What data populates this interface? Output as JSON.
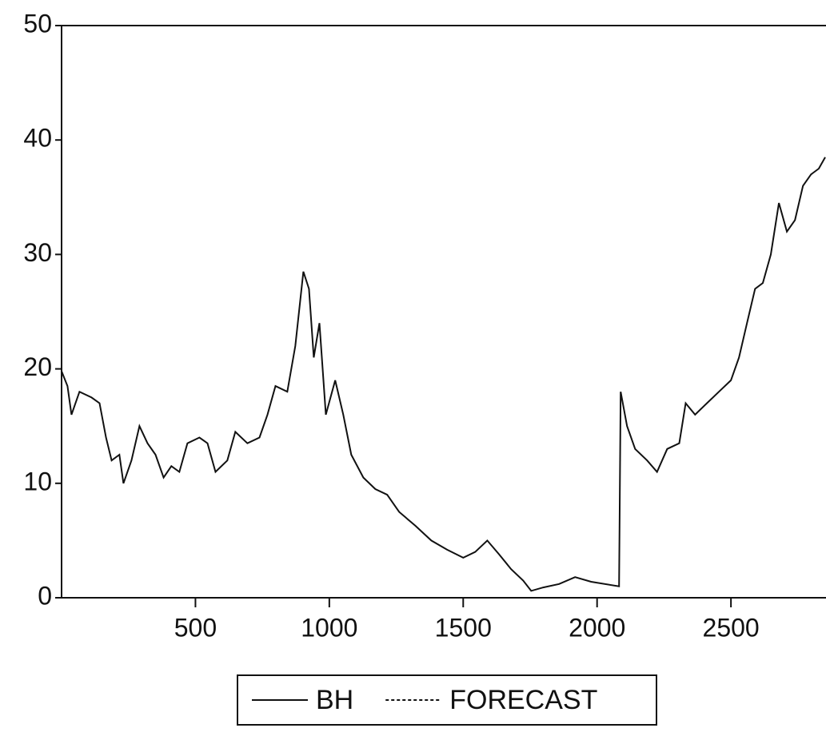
{
  "chart_data": {
    "type": "line",
    "x": [
      0,
      22,
      37,
      67,
      112,
      142,
      166,
      187,
      216,
      231,
      261,
      291,
      321,
      351,
      381,
      410,
      440,
      470,
      515,
      545,
      575,
      619,
      649,
      694,
      739,
      769,
      799,
      843,
      873,
      903,
      924,
      942,
      963,
      987,
      1022,
      1052,
      1082,
      1127,
      1172,
      1216,
      1261,
      1321,
      1381,
      1440,
      1500,
      1545,
      1590,
      1634,
      1679,
      1724,
      1754,
      1799,
      1858,
      1918,
      1978,
      2082,
      2088,
      2112,
      2142,
      2187,
      2224,
      2262,
      2307,
      2331,
      2366,
      2410,
      2455,
      2500,
      2530,
      2560,
      2590,
      2619,
      2649,
      2679,
      2709,
      2739,
      2769,
      2799,
      2828,
      2852
    ],
    "series": [
      {
        "name": "BH",
        "color": "#111111",
        "dashed": false,
        "values": [
          19.8,
          18.5,
          16,
          18,
          17.5,
          17,
          14,
          12,
          12.5,
          10,
          12,
          15,
          13.5,
          12.5,
          10.5,
          11.5,
          11,
          13.5,
          14,
          13.5,
          11,
          12,
          14.5,
          13.5,
          14,
          16,
          18.5,
          18,
          22,
          28.5,
          27,
          21,
          24,
          16,
          19,
          16,
          12.5,
          10.5,
          9.5,
          9,
          7.5,
          6.3,
          5,
          4.2,
          3.5,
          4,
          5,
          3.8,
          2.5,
          1.5,
          0.6,
          0.9,
          1.2,
          1.8,
          1.4,
          1.0,
          18,
          15,
          13,
          12,
          11,
          13,
          13.5,
          17,
          16,
          17,
          18,
          19,
          21,
          24,
          27,
          27.5,
          30,
          34.5,
          32,
          33,
          36,
          37,
          37.5,
          38.5
        ]
      },
      {
        "name": "FORECAST",
        "color": "#111111",
        "dashed": true,
        "values": [
          null,
          null,
          null,
          null,
          null,
          null,
          null,
          null,
          null,
          null,
          null,
          null,
          null,
          null,
          null,
          null,
          null,
          null,
          null,
          null,
          null,
          null,
          null,
          null,
          null,
          null,
          null,
          null,
          null,
          null,
          null,
          null,
          null,
          null,
          null,
          null,
          null,
          null,
          null,
          null,
          null,
          null,
          null,
          null,
          null,
          null,
          null,
          null,
          null,
          null,
          null,
          null,
          null,
          null,
          null,
          null,
          null,
          null,
          null,
          null,
          null,
          null,
          null,
          null,
          null,
          null,
          null,
          null,
          null,
          null,
          null,
          null,
          null,
          null,
          null,
          null,
          null,
          null,
          null,
          null
        ]
      }
    ],
    "xlim": [
      0,
      2852
    ],
    "ylim": [
      0,
      50
    ],
    "xticks": [
      500,
      1000,
      1500,
      2000,
      2500
    ],
    "yticks": [
      0,
      10,
      20,
      30,
      40,
      50
    ],
    "grid": false,
    "legend": "bottom"
  }
}
